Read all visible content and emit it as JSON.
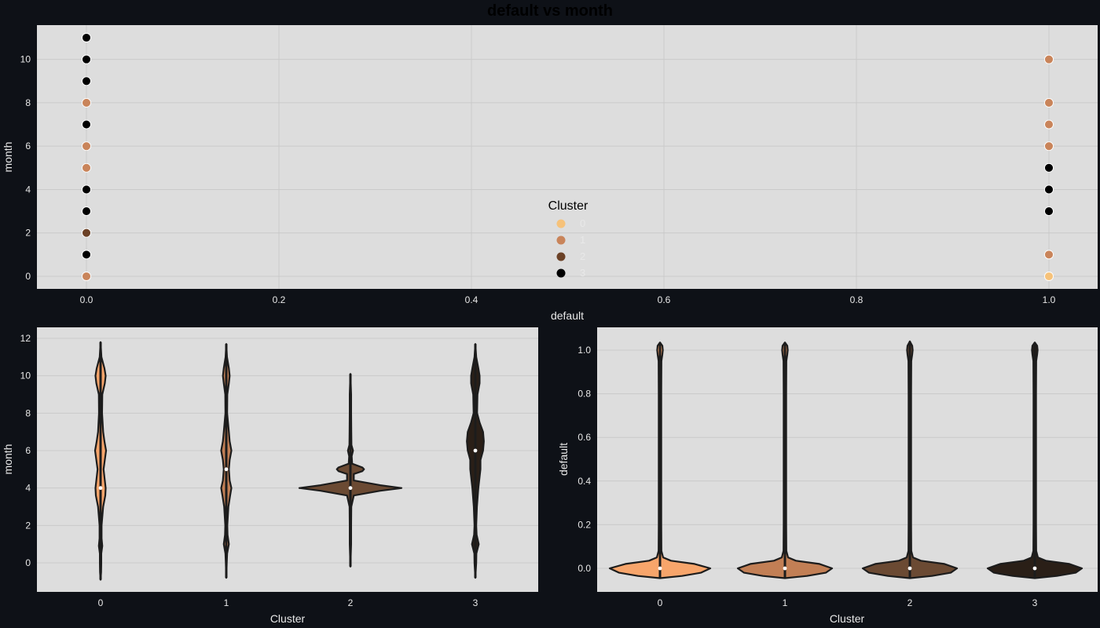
{
  "colors": {
    "figure_bg": "#0e1117",
    "panel_bg": "#dddddd",
    "grid": "#cacaca",
    "text": "#e8e8e8",
    "violin_edge": "#1c1c1c",
    "palette": [
      "#f7a56b",
      "#c27f55",
      "#6b4a33",
      "#2a1f17"
    ],
    "scatter_palette": [
      "#f6c27a",
      "#c9845a",
      "#6b4126",
      "#000000"
    ]
  },
  "chart_data": [
    {
      "type": "scatter",
      "title": "default vs month",
      "xlabel": "default",
      "ylabel": "month",
      "xlim": [
        -0.05,
        1.05
      ],
      "ylim": [
        -0.6,
        11.6
      ],
      "xticks": [
        0.0,
        0.2,
        0.4,
        0.6,
        0.8,
        1.0
      ],
      "xtick_labels": [
        "0.0",
        "0.2",
        "0.4",
        "0.6",
        "0.8",
        "1.0"
      ],
      "yticks": [
        0,
        2,
        4,
        6,
        8,
        10
      ],
      "ytick_labels": [
        "0",
        "2",
        "4",
        "6",
        "8",
        "10"
      ],
      "grid": true,
      "legend": {
        "title": "Cluster",
        "entries": [
          "0",
          "1",
          "2",
          "3"
        ],
        "placement": "lower-center"
      },
      "points": [
        {
          "x": 0,
          "y": 11,
          "cluster": 3
        },
        {
          "x": 0,
          "y": 10,
          "cluster": 3
        },
        {
          "x": 0,
          "y": 9,
          "cluster": 3
        },
        {
          "x": 0,
          "y": 8,
          "cluster": 1
        },
        {
          "x": 0,
          "y": 7,
          "cluster": 3
        },
        {
          "x": 0,
          "y": 6,
          "cluster": 1
        },
        {
          "x": 0,
          "y": 5,
          "cluster": 1
        },
        {
          "x": 0,
          "y": 4,
          "cluster": 3
        },
        {
          "x": 0,
          "y": 3,
          "cluster": 3
        },
        {
          "x": 0,
          "y": 2,
          "cluster": 2
        },
        {
          "x": 0,
          "y": 1,
          "cluster": 3
        },
        {
          "x": 0,
          "y": 0,
          "cluster": 1
        },
        {
          "x": 1,
          "y": 10,
          "cluster": 1
        },
        {
          "x": 1,
          "y": 8,
          "cluster": 1
        },
        {
          "x": 1,
          "y": 7,
          "cluster": 1
        },
        {
          "x": 1,
          "y": 6,
          "cluster": 1
        },
        {
          "x": 1,
          "y": 5,
          "cluster": 3
        },
        {
          "x": 1,
          "y": 4,
          "cluster": 3
        },
        {
          "x": 1,
          "y": 3,
          "cluster": 3
        },
        {
          "x": 1,
          "y": 1,
          "cluster": 1
        },
        {
          "x": 1,
          "y": 0,
          "cluster": 0
        }
      ]
    },
    {
      "type": "violin",
      "xlabel": "Cluster",
      "ylabel": "month",
      "categories": [
        "0",
        "1",
        "2",
        "3"
      ],
      "ylim": [
        -1.5,
        12.5
      ],
      "yticks": [
        0,
        2,
        4,
        6,
        8,
        10,
        12
      ],
      "ytick_labels": [
        "0",
        "2",
        "4",
        "6",
        "8",
        "10",
        "12"
      ],
      "grid": true,
      "medians": [
        4,
        5,
        4,
        6
      ],
      "densities": [
        [
          [
            -0.9,
            0
          ],
          [
            -0.5,
            0.006
          ],
          [
            0,
            0.008
          ],
          [
            0.5,
            0.008
          ],
          [
            0.9,
            0.02
          ],
          [
            1.3,
            0.012
          ],
          [
            2,
            0.012
          ],
          [
            3,
            0.03
          ],
          [
            3.6,
            0.055
          ],
          [
            4,
            0.06
          ],
          [
            4.4,
            0.05
          ],
          [
            5,
            0.035
          ],
          [
            5.5,
            0.05
          ],
          [
            6,
            0.065
          ],
          [
            6.5,
            0.045
          ],
          [
            7,
            0.03
          ],
          [
            8,
            0.018
          ],
          [
            9,
            0.02
          ],
          [
            9.6,
            0.05
          ],
          [
            10,
            0.06
          ],
          [
            10.4,
            0.045
          ],
          [
            11,
            0.01
          ],
          [
            11.8,
            0
          ]
        ],
        [
          [
            -0.8,
            0
          ],
          [
            0,
            0.006
          ],
          [
            0.5,
            0.01
          ],
          [
            1,
            0.03
          ],
          [
            1.5,
            0.015
          ],
          [
            2,
            0.012
          ],
          [
            3,
            0.025
          ],
          [
            3.6,
            0.045
          ],
          [
            4,
            0.06
          ],
          [
            4.4,
            0.04
          ],
          [
            5,
            0.03
          ],
          [
            5.5,
            0.04
          ],
          [
            6,
            0.06
          ],
          [
            6.5,
            0.04
          ],
          [
            7,
            0.03
          ],
          [
            8,
            0.01
          ],
          [
            9,
            0.012
          ],
          [
            9.6,
            0.03
          ],
          [
            10,
            0.04
          ],
          [
            10.4,
            0.03
          ],
          [
            11,
            0.008
          ],
          [
            11.7,
            0
          ]
        ],
        [
          [
            -0.2,
            0
          ],
          [
            1,
            0.008
          ],
          [
            2,
            0.008
          ],
          [
            3,
            0.01
          ],
          [
            3.6,
            0.04
          ],
          [
            3.85,
            0.35
          ],
          [
            4,
            0.6
          ],
          [
            4.15,
            0.35
          ],
          [
            4.4,
            0.04
          ],
          [
            4.75,
            0.04
          ],
          [
            4.9,
            0.14
          ],
          [
            5,
            0.16
          ],
          [
            5.1,
            0.14
          ],
          [
            5.3,
            0.02
          ],
          [
            5.7,
            0.015
          ],
          [
            6,
            0.03
          ],
          [
            6.3,
            0.012
          ],
          [
            7,
            0.01
          ],
          [
            8,
            0.008
          ],
          [
            9,
            0.008
          ],
          [
            10.1,
            0
          ]
        ],
        [
          [
            -0.8,
            0
          ],
          [
            0,
            0.01
          ],
          [
            0.5,
            0.012
          ],
          [
            1,
            0.04
          ],
          [
            1.5,
            0.015
          ],
          [
            2,
            0.01
          ],
          [
            3,
            0.018
          ],
          [
            4,
            0.035
          ],
          [
            5,
            0.06
          ],
          [
            5.5,
            0.06
          ],
          [
            6,
            0.09
          ],
          [
            6.5,
            0.1
          ],
          [
            7,
            0.09
          ],
          [
            7.5,
            0.05
          ],
          [
            8,
            0.02
          ],
          [
            9,
            0.025
          ],
          [
            9.6,
            0.05
          ],
          [
            10,
            0.05
          ],
          [
            10.4,
            0.035
          ],
          [
            11,
            0.01
          ],
          [
            11.7,
            0
          ]
        ]
      ]
    },
    {
      "type": "violin",
      "xlabel": "Cluster",
      "ylabel": "default",
      "categories": [
        "0",
        "1",
        "2",
        "3"
      ],
      "ylim": [
        -0.09,
        1.1
      ],
      "yticks": [
        0.0,
        0.2,
        0.4,
        0.6,
        0.8,
        1.0
      ],
      "ytick_labels": [
        "0.0",
        "0.2",
        "0.4",
        "0.6",
        "0.8",
        "1.0"
      ],
      "grid": true,
      "medians": [
        0,
        0,
        0,
        0
      ],
      "densities": [
        [
          [
            -0.045,
            0
          ],
          [
            -0.035,
            0.28
          ],
          [
            -0.02,
            0.52
          ],
          [
            0,
            0.64
          ],
          [
            0.02,
            0.44
          ],
          [
            0.035,
            0.14
          ],
          [
            0.05,
            0.04
          ],
          [
            0.08,
            0.018
          ],
          [
            0.2,
            0.016
          ],
          [
            0.5,
            0.016
          ],
          [
            0.8,
            0.016
          ],
          [
            0.95,
            0.018
          ],
          [
            0.98,
            0.03
          ],
          [
            1,
            0.036
          ],
          [
            1.02,
            0.03
          ],
          [
            1.035,
            0
          ]
        ],
        [
          [
            -0.045,
            0
          ],
          [
            -0.035,
            0.28
          ],
          [
            -0.02,
            0.52
          ],
          [
            0,
            0.6
          ],
          [
            0.02,
            0.44
          ],
          [
            0.035,
            0.14
          ],
          [
            0.05,
            0.04
          ],
          [
            0.08,
            0.018
          ],
          [
            0.2,
            0.016
          ],
          [
            0.5,
            0.016
          ],
          [
            0.8,
            0.016
          ],
          [
            0.95,
            0.018
          ],
          [
            0.98,
            0.03
          ],
          [
            1,
            0.036
          ],
          [
            1.02,
            0.03
          ],
          [
            1.035,
            0
          ]
        ],
        [
          [
            -0.045,
            0
          ],
          [
            -0.035,
            0.28
          ],
          [
            -0.02,
            0.52
          ],
          [
            0,
            0.6
          ],
          [
            0.02,
            0.44
          ],
          [
            0.035,
            0.14
          ],
          [
            0.05,
            0.04
          ],
          [
            0.08,
            0.018
          ],
          [
            0.2,
            0.016
          ],
          [
            0.5,
            0.016
          ],
          [
            0.8,
            0.016
          ],
          [
            0.95,
            0.018
          ],
          [
            0.98,
            0.03
          ],
          [
            1,
            0.036
          ],
          [
            1.02,
            0.03
          ],
          [
            1.04,
            0
          ]
        ],
        [
          [
            -0.045,
            0
          ],
          [
            -0.035,
            0.28
          ],
          [
            -0.02,
            0.52
          ],
          [
            0,
            0.6
          ],
          [
            0.02,
            0.44
          ],
          [
            0.035,
            0.14
          ],
          [
            0.05,
            0.04
          ],
          [
            0.08,
            0.018
          ],
          [
            0.2,
            0.016
          ],
          [
            0.5,
            0.016
          ],
          [
            0.8,
            0.016
          ],
          [
            0.95,
            0.018
          ],
          [
            0.98,
            0.03
          ],
          [
            1,
            0.036
          ],
          [
            1.02,
            0.03
          ],
          [
            1.035,
            0
          ]
        ]
      ]
    }
  ]
}
